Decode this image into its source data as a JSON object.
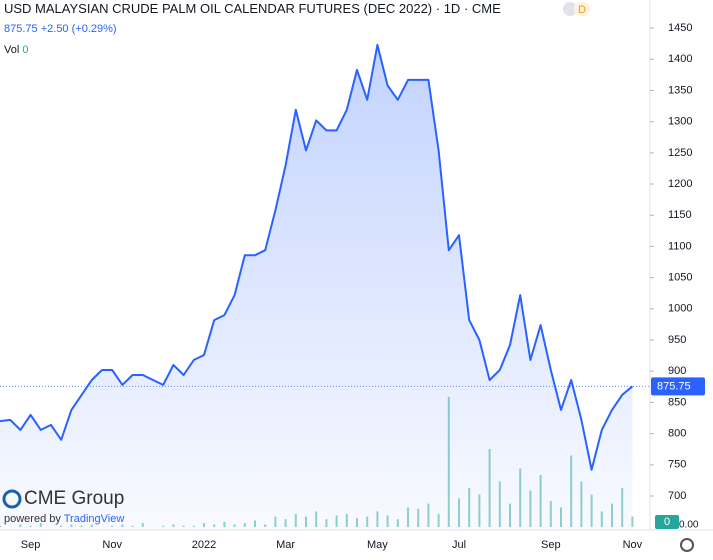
{
  "header": {
    "title": "USD MALAYSIAN CRUDE PALM OIL CALENDAR FUTURES (DEC 2022)",
    "interval": "1D",
    "exchange": "CME",
    "badge": "D",
    "last": "875.75",
    "change": "+2.50",
    "change_pct": "(+0.29%)",
    "vol_label": "Vol",
    "vol_value": 0
  },
  "branding": {
    "logo": "CME Group",
    "powered": "powered by",
    "provider": "TradingView"
  },
  "chart_data": {
    "type": "area",
    "categories": [
      null,
      null,
      null,
      "Sep",
      null,
      null,
      null,
      null,
      null,
      null,
      null,
      "Nov",
      null,
      null,
      null,
      null,
      null,
      null,
      null,
      null,
      "2022",
      null,
      null,
      null,
      null,
      null,
      null,
      null,
      "Mar",
      null,
      null,
      null,
      null,
      null,
      null,
      null,
      null,
      "May",
      null,
      null,
      null,
      null,
      null,
      null,
      null,
      "Jul",
      null,
      null,
      null,
      null,
      null,
      null,
      null,
      null,
      "Sep",
      null,
      null,
      null,
      null,
      null,
      null,
      null,
      "Nov"
    ],
    "values": [
      820,
      822,
      806,
      830,
      806,
      814,
      790,
      838,
      862,
      886,
      902,
      902,
      878,
      894,
      894,
      886,
      878,
      910,
      894,
      918,
      926,
      982,
      990,
      1022,
      1086,
      1086,
      1094,
      1158,
      1230,
      1319,
      1254,
      1302,
      1286,
      1286,
      1319,
      1383,
      1335,
      1423,
      1358,
      1335,
      1367,
      1367,
      1367,
      1254,
      1094,
      1118,
      982,
      950,
      886,
      902,
      942,
      1022,
      918,
      974,
      902,
      838,
      886,
      822,
      742,
      806,
      838,
      862,
      875.75
    ],
    "color": "#2962ff",
    "volume": {
      "color": "#26a69a",
      "vlim": [
        0,
        100
      ],
      "values": [
        1,
        0,
        2,
        1,
        3,
        0,
        1,
        2,
        1,
        2,
        0,
        1,
        2,
        1,
        3,
        0,
        1,
        2,
        1,
        1,
        3,
        2,
        4,
        2,
        3,
        5,
        2,
        8,
        6,
        10,
        8,
        12,
        6,
        9,
        10,
        7,
        8,
        12,
        9,
        6,
        15,
        14,
        18,
        10,
        100,
        22,
        30,
        25,
        60,
        35,
        18,
        45,
        28,
        40,
        20,
        15,
        55,
        35,
        25,
        12,
        18,
        30,
        8
      ],
      "vticks": [
        {
          "value": 0,
          "label": "0.00"
        }
      ]
    },
    "ylim": [
      645.5,
      1495
    ],
    "yticks": [
      700,
      750,
      800,
      850,
      900,
      950,
      1000,
      1050,
      1100,
      1150,
      1200,
      1250,
      1300,
      1350,
      1400,
      1450
    ],
    "grid": false
  }
}
